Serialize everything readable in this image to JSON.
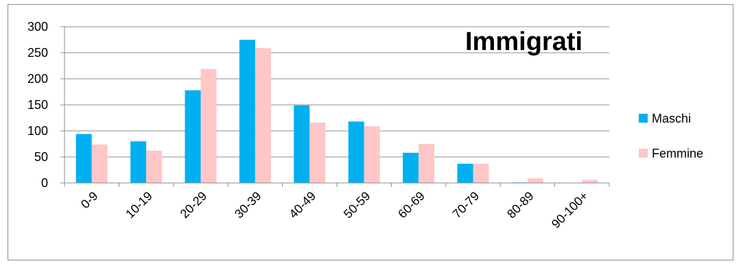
{
  "chart_data": {
    "type": "bar",
    "title": "Immigrati",
    "xlabel": "",
    "ylabel": "",
    "ylim": [
      0,
      300
    ],
    "yticks": [
      0,
      50,
      100,
      150,
      200,
      250,
      300
    ],
    "categories": [
      "0-9",
      "10-19",
      "20-29",
      "30-39",
      "40-49",
      "50-59",
      "60-69",
      "70-79",
      "80-89",
      "90-100+"
    ],
    "series": [
      {
        "name": "Maschi",
        "color": "#00b0f0",
        "values": [
          94,
          80,
          178,
          275,
          149,
          118,
          58,
          37,
          1,
          0
        ]
      },
      {
        "name": "Femmine",
        "color": "#ffc7c7",
        "values": [
          74,
          62,
          219,
          259,
          116,
          109,
          75,
          37,
          9,
          6
        ]
      }
    ],
    "grid": true,
    "legend_position": "right"
  }
}
